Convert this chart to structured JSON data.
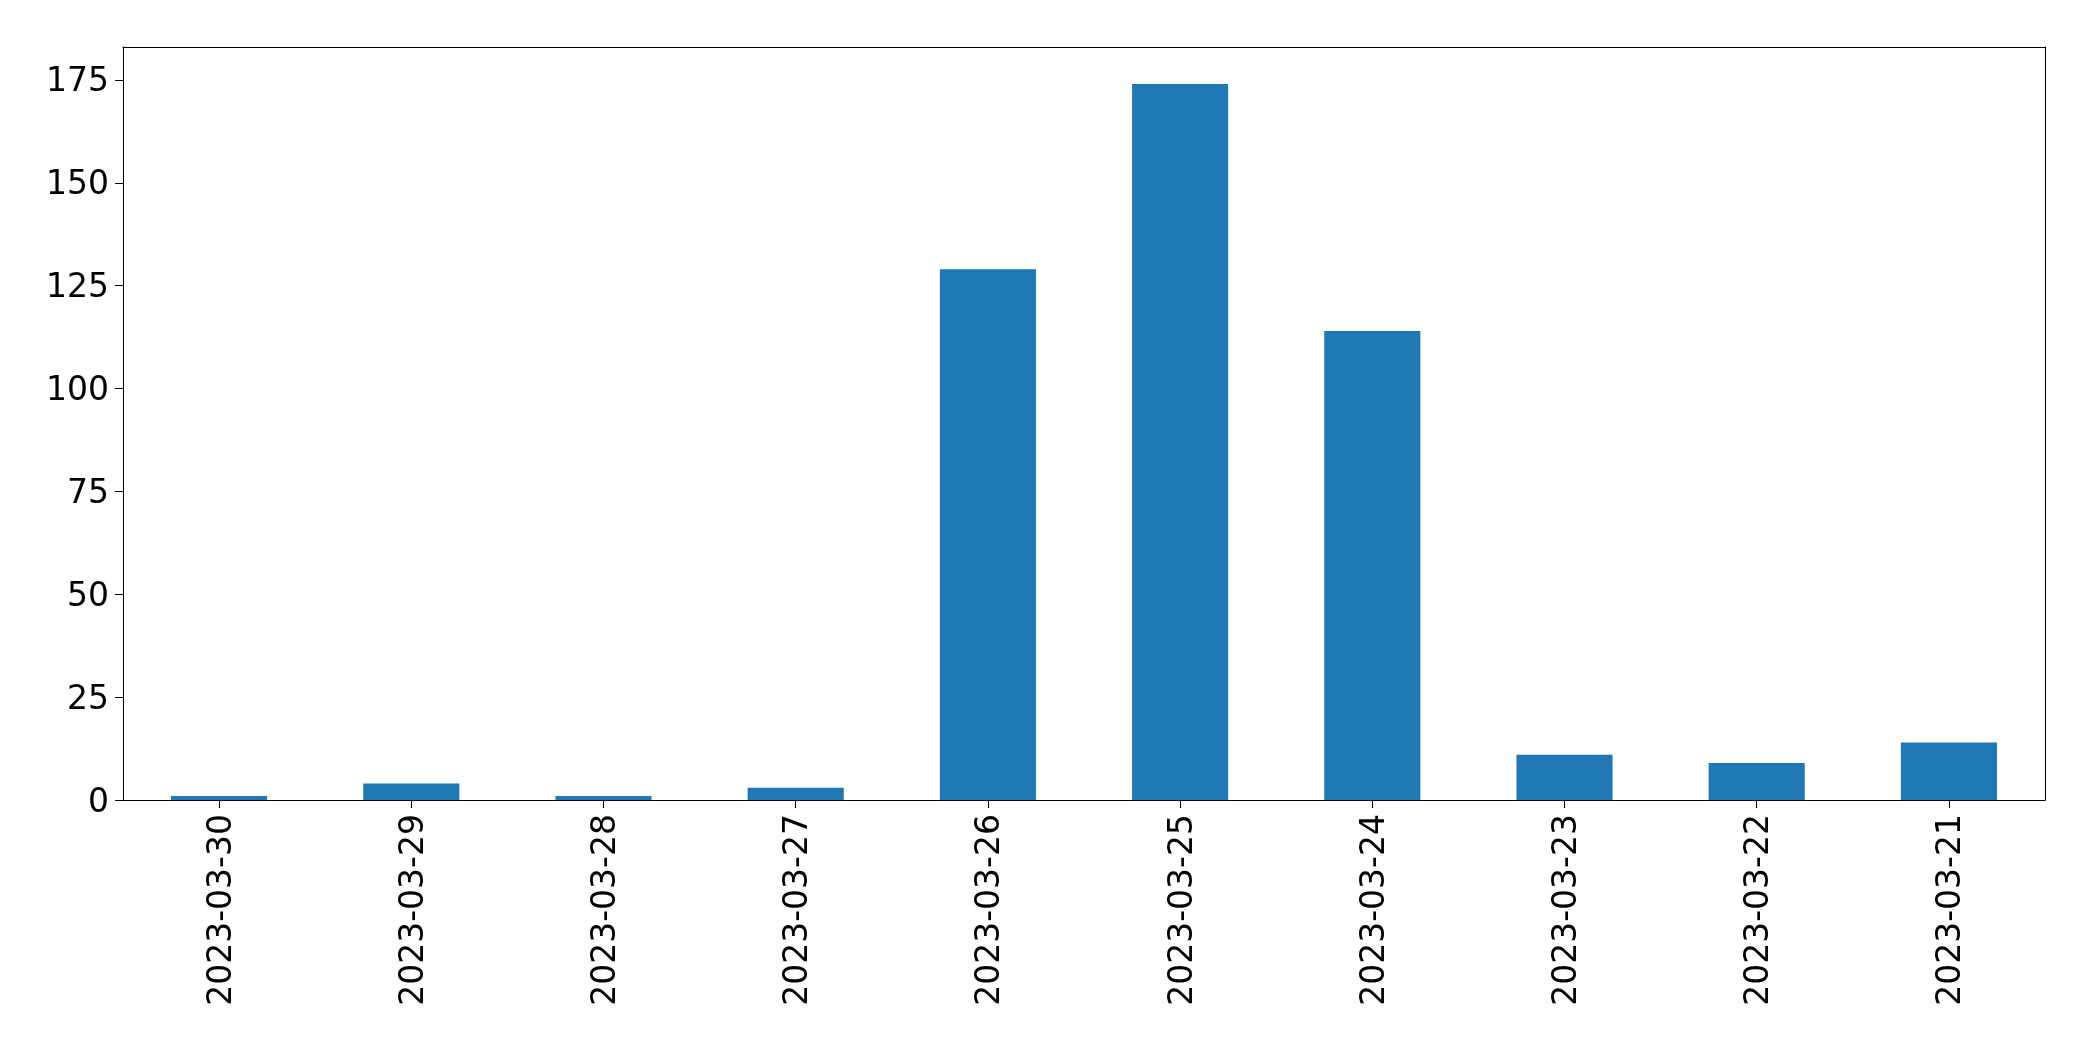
{
  "chart_data": {
    "type": "bar",
    "categories": [
      "2023-03-30",
      "2023-03-29",
      "2023-03-28",
      "2023-03-27",
      "2023-03-26",
      "2023-03-25",
      "2023-03-24",
      "2023-03-23",
      "2023-03-22",
      "2023-03-21"
    ],
    "values": [
      1,
      4,
      1,
      3,
      129,
      174,
      114,
      11,
      9,
      14
    ],
    "color": "#1f77b4",
    "ylim": [
      0,
      183
    ],
    "yticks": [
      0,
      25,
      50,
      75,
      100,
      125,
      150,
      175
    ],
    "grid": false
  }
}
